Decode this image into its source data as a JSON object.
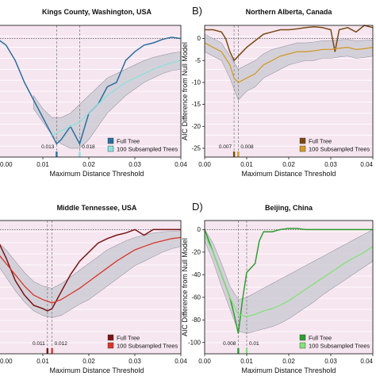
{
  "chart_data": [
    {
      "type": "line",
      "panel_label": "",
      "title": "Kings County, Washington, USA",
      "xlabel": "Maximum Distance Threshold",
      "ylabel": "",
      "xlim": [
        0,
        0.04
      ],
      "ylim": [
        -27,
        3
      ],
      "x_ticks": [
        "0.00",
        "0.01",
        "0.02",
        "0.03",
        "0.04"
      ],
      "y_ticks": [],
      "colors": {
        "full": "#2b6f9e",
        "sub": "#8ee0dc",
        "band": "#c8c8d2",
        "bg": "#f6e6f0"
      },
      "series": [
        {
          "name": "Full Tree",
          "role": "full",
          "x": [
            0,
            0.002,
            0.004,
            0.006,
            0.008,
            0.01,
            0.012,
            0.013,
            0.014,
            0.016,
            0.018,
            0.02,
            0.022,
            0.024,
            0.026,
            0.028,
            0.03,
            0.032,
            0.034,
            0.036,
            0.038,
            0.04
          ],
          "y": [
            0,
            -1.5,
            -5,
            -10,
            -14,
            -18,
            -22,
            -24,
            -23,
            -20,
            -24,
            -17,
            -15,
            -11,
            -10,
            -5,
            -3,
            -1.5,
            -1,
            -0.2,
            0.3,
            0
          ]
        },
        {
          "name": "100 Subsampled Trees",
          "role": "sub",
          "x": [
            0.012,
            0.014,
            0.016,
            0.018,
            0.02,
            0.022,
            0.024,
            0.026,
            0.028,
            0.03,
            0.032,
            0.034,
            0.036,
            0.038,
            0.04
          ],
          "y": [
            -22,
            -21,
            -20,
            -19,
            -17,
            -15,
            -13,
            -11.5,
            -10,
            -9,
            -8,
            -7,
            -6.2,
            -5.5,
            -5
          ]
        },
        {
          "name": "",
          "role": "band_upper",
          "x": [
            0.008,
            0.01,
            0.012,
            0.014,
            0.016,
            0.018,
            0.02,
            0.022,
            0.024,
            0.026,
            0.028,
            0.03,
            0.032,
            0.034,
            0.036,
            0.038,
            0.04
          ],
          "y": [
            -13,
            -16,
            -18,
            -18,
            -17,
            -15,
            -13,
            -11,
            -9,
            -8,
            -7,
            -6,
            -5,
            -4.3,
            -3.8,
            -3.3,
            -3
          ]
        },
        {
          "name": "",
          "role": "band_lower",
          "x": [
            0.008,
            0.01,
            0.012,
            0.014,
            0.016,
            0.018,
            0.02,
            0.022,
            0.024,
            0.026,
            0.028,
            0.03,
            0.032,
            0.034,
            0.036,
            0.038,
            0.04
          ],
          "y": [
            -16,
            -19,
            -22,
            -24,
            -25,
            -25,
            -23,
            -20,
            -17,
            -15,
            -13,
            -11.5,
            -10,
            -9,
            -8,
            -7.3,
            -7
          ]
        }
      ],
      "vlines": [
        0.013,
        0.018
      ],
      "annotations": [
        {
          "x": 0.013,
          "text": "0.013"
        },
        {
          "x": 0.018,
          "text": "0.018"
        }
      ],
      "legend": [
        "Full Tree",
        "100 Subsampled Trees"
      ],
      "legend_position": "bottom-right"
    },
    {
      "type": "line",
      "panel_label": "B)",
      "title": "Northern Alberta, Canada",
      "xlabel": "Maximum Distance Threshold",
      "ylabel": "AIC Difference from Null Model",
      "xlim": [
        0,
        0.04
      ],
      "ylim": [
        -27,
        3
      ],
      "x_ticks": [
        "0.00",
        "0.01",
        "0.02",
        "0.03",
        "0.04"
      ],
      "y_ticks": [
        "0",
        "-5",
        "-10",
        "-15",
        "-20",
        "-25"
      ],
      "colors": {
        "full": "#7a4a14",
        "sub": "#d19a2a",
        "band": "#c8c8d2",
        "bg": "#f6e6f0"
      },
      "series": [
        {
          "name": "Full Tree",
          "role": "full",
          "x": [
            0,
            0.002,
            0.004,
            0.005,
            0.006,
            0.007,
            0.008,
            0.01,
            0.012,
            0.014,
            0.016,
            0.018,
            0.02,
            0.022,
            0.024,
            0.026,
            0.028,
            0.03,
            0.031,
            0.032,
            0.034,
            0.036,
            0.038,
            0.04
          ],
          "y": [
            2,
            2,
            1.5,
            0,
            -3,
            -5,
            -4,
            -2,
            -0.5,
            1,
            1.5,
            2,
            2,
            2.2,
            2.5,
            2.7,
            2.5,
            2,
            -3,
            2,
            2.5,
            1.5,
            3,
            2.5
          ]
        },
        {
          "name": "100 Subsampled Trees",
          "role": "sub",
          "x": [
            0,
            0.002,
            0.004,
            0.006,
            0.007,
            0.008,
            0.01,
            0.012,
            0.014,
            0.016,
            0.018,
            0.02,
            0.022,
            0.024,
            0.026,
            0.028,
            0.03,
            0.032,
            0.034,
            0.036,
            0.038,
            0.04
          ],
          "y": [
            -1,
            -2,
            -3,
            -6,
            -9,
            -10,
            -9,
            -8,
            -6,
            -5,
            -4,
            -3.5,
            -3,
            -3,
            -2.8,
            -2.5,
            -2.5,
            -2.2,
            -2,
            -2.5,
            -2.3,
            -2
          ]
        },
        {
          "name": "",
          "role": "band_upper",
          "x": [
            0,
            0.002,
            0.004,
            0.006,
            0.008,
            0.01,
            0.012,
            0.014,
            0.016,
            0.018,
            0.02,
            0.022,
            0.024,
            0.026,
            0.028,
            0.03,
            0.032,
            0.034,
            0.036,
            0.038,
            0.04
          ],
          "y": [
            1,
            0,
            -1,
            -4,
            -7,
            -6,
            -5,
            -3.5,
            -2.5,
            -2,
            -1.5,
            -1,
            -1,
            -0.8,
            -0.5,
            -0.5,
            -0.3,
            -0.2,
            -0.5,
            -0.4,
            -0.3
          ]
        },
        {
          "name": "",
          "role": "band_lower",
          "x": [
            0,
            0.002,
            0.004,
            0.006,
            0.008,
            0.01,
            0.012,
            0.014,
            0.016,
            0.018,
            0.02,
            0.022,
            0.024,
            0.026,
            0.028,
            0.03,
            0.032,
            0.034,
            0.036,
            0.038,
            0.04
          ],
          "y": [
            -3,
            -4,
            -5,
            -9,
            -14,
            -12,
            -11,
            -9,
            -8,
            -7,
            -6,
            -5.5,
            -5,
            -5,
            -4.5,
            -4.5,
            -4.2,
            -4,
            -4.5,
            -4.3,
            -4
          ]
        }
      ],
      "vlines": [
        0.007,
        0.008
      ],
      "annotations": [
        {
          "x": 0.007,
          "text": "0.007"
        },
        {
          "x": 0.008,
          "text": "0.008"
        }
      ],
      "legend": [
        "Full Tree",
        "100 Subsampled Trees"
      ],
      "legend_position": "bottom-right"
    },
    {
      "type": "line",
      "panel_label": "",
      "title": "Middle Tennessee, USA",
      "xlabel": "Maximum Distance Threshold",
      "ylabel": "",
      "xlim": [
        0,
        0.04
      ],
      "ylim": [
        -110,
        8
      ],
      "x_ticks": [
        "0.00",
        "0.01",
        "0.02",
        "0.03",
        "0.04"
      ],
      "y_ticks": [],
      "colors": {
        "full": "#7a1414",
        "sub": "#d8362b",
        "band": "#c8c8d2",
        "bg": "#f6e6f0"
      },
      "series": [
        {
          "name": "Full Tree",
          "role": "full",
          "x": [
            0,
            0.002,
            0.004,
            0.006,
            0.008,
            0.01,
            0.011,
            0.012,
            0.014,
            0.016,
            0.018,
            0.02,
            0.022,
            0.024,
            0.026,
            0.028,
            0.03,
            0.032,
            0.034,
            0.036,
            0.038,
            0.04
          ],
          "y": [
            -8,
            -25,
            -45,
            -58,
            -67,
            -70,
            -72,
            -70,
            -55,
            -40,
            -28,
            -20,
            -12,
            -8,
            -5,
            -3,
            0,
            -5,
            0,
            0,
            0,
            0
          ]
        },
        {
          "name": "100 Subsampled Trees",
          "role": "sub",
          "x": [
            0,
            0.002,
            0.004,
            0.006,
            0.008,
            0.01,
            0.012,
            0.014,
            0.016,
            0.018,
            0.02,
            0.022,
            0.024,
            0.026,
            0.028,
            0.03,
            0.032,
            0.034,
            0.036,
            0.038,
            0.04
          ],
          "y": [
            -20,
            -30,
            -40,
            -50,
            -58,
            -62,
            -65,
            -62,
            -57,
            -52,
            -46,
            -40,
            -34,
            -28,
            -23,
            -18,
            -15,
            -12,
            -10,
            -8,
            -7
          ]
        },
        {
          "name": "",
          "role": "band_upper",
          "x": [
            0,
            0.002,
            0.004,
            0.006,
            0.008,
            0.01,
            0.012,
            0.014,
            0.016,
            0.018,
            0.02,
            0.022,
            0.024,
            0.026,
            0.028,
            0.03,
            0.032,
            0.034,
            0.036,
            0.038,
            0.04
          ],
          "y": [
            -10,
            -18,
            -28,
            -38,
            -46,
            -50,
            -52,
            -48,
            -42,
            -36,
            -30,
            -24,
            -18,
            -14,
            -10,
            -7,
            -5,
            -3,
            -2,
            -1.5,
            -1
          ]
        },
        {
          "name": "",
          "role": "band_lower",
          "x": [
            0,
            0.002,
            0.004,
            0.006,
            0.008,
            0.01,
            0.012,
            0.014,
            0.016,
            0.018,
            0.02,
            0.022,
            0.024,
            0.026,
            0.028,
            0.03,
            0.032,
            0.034,
            0.036,
            0.038,
            0.04
          ],
          "y": [
            -30,
            -42,
            -54,
            -64,
            -72,
            -76,
            -78,
            -76,
            -71,
            -66,
            -62,
            -56,
            -50,
            -44,
            -38,
            -32,
            -28,
            -24,
            -20,
            -17,
            -15
          ]
        }
      ],
      "vlines": [
        0.011,
        0.012
      ],
      "annotations": [
        {
          "x": 0.011,
          "text": "0.011"
        },
        {
          "x": 0.012,
          "text": "0.012"
        }
      ],
      "legend": [
        "Full Tree",
        "100 Subsampled Trees"
      ],
      "legend_position": "bottom-right"
    },
    {
      "type": "line",
      "panel_label": "D)",
      "title": "Beijing, China",
      "xlabel": "Maximum Distance Threshold",
      "ylabel": "AIC Difference from Null Model",
      "xlim": [
        0,
        0.04
      ],
      "ylim": [
        -110,
        8
      ],
      "x_ticks": [
        "0.00",
        "0.01",
        "0.02",
        "0.03",
        "0.04"
      ],
      "y_ticks": [
        "0",
        "-20",
        "-40",
        "-60",
        "-80",
        "-100"
      ],
      "colors": {
        "full": "#2f9e2f",
        "sub": "#86e07a",
        "band": "#c8c8d2",
        "bg": "#f6e6f0"
      },
      "series": [
        {
          "name": "Full Tree",
          "role": "full",
          "x": [
            0,
            0.002,
            0.004,
            0.006,
            0.007,
            0.008,
            0.009,
            0.01,
            0.012,
            0.013,
            0.014,
            0.016,
            0.018,
            0.02,
            0.022,
            0.024,
            0.026,
            0.028,
            0.03,
            0.032,
            0.034,
            0.036,
            0.038,
            0.04
          ],
          "y": [
            0,
            -20,
            -40,
            -60,
            -75,
            -92,
            -62,
            -38,
            -30,
            -10,
            -2,
            -2,
            0,
            1,
            1,
            0,
            0,
            0,
            0,
            0,
            0,
            0,
            0,
            0
          ]
        },
        {
          "name": "100 Subsampled Trees",
          "role": "sub",
          "x": [
            0,
            0.002,
            0.004,
            0.006,
            0.008,
            0.01,
            0.012,
            0.014,
            0.016,
            0.018,
            0.02,
            0.022,
            0.024,
            0.026,
            0.028,
            0.03,
            0.032,
            0.034,
            0.036,
            0.038,
            0.04
          ],
          "y": [
            -5,
            -20,
            -40,
            -60,
            -75,
            -77,
            -75,
            -72,
            -70,
            -67,
            -63,
            -58,
            -53,
            -48,
            -43,
            -38,
            -33,
            -28,
            -24,
            -20,
            -15
          ]
        },
        {
          "name": "",
          "role": "band_upper",
          "x": [
            0,
            0.002,
            0.004,
            0.006,
            0.008,
            0.01,
            0.012,
            0.014,
            0.016,
            0.018,
            0.02,
            0.022,
            0.024,
            0.026,
            0.028,
            0.03,
            0.032,
            0.034,
            0.036,
            0.038,
            0.04
          ],
          "y": [
            0,
            -12,
            -30,
            -50,
            -62,
            -60,
            -56,
            -52,
            -48,
            -44,
            -40,
            -36,
            -32,
            -28,
            -24,
            -20,
            -16,
            -12,
            -8,
            -4,
            0
          ]
        },
        {
          "name": "",
          "role": "band_lower",
          "x": [
            0,
            0.002,
            0.004,
            0.006,
            0.008,
            0.01,
            0.012,
            0.014,
            0.016,
            0.018,
            0.02,
            0.022,
            0.024,
            0.026,
            0.028,
            0.03,
            0.032,
            0.034,
            0.036,
            0.038,
            0.04
          ],
          "y": [
            -10,
            -28,
            -50,
            -70,
            -90,
            -92,
            -90,
            -88,
            -86,
            -83,
            -79,
            -74,
            -69,
            -64,
            -58,
            -53,
            -48,
            -43,
            -38,
            -33,
            -28
          ]
        }
      ],
      "vlines": [
        0.008,
        0.01
      ],
      "annotations": [
        {
          "x": 0.008,
          "text": "0.008"
        },
        {
          "x": 0.01,
          "text": "0.01"
        }
      ],
      "legend": [
        "Full Tree",
        "100 Subsampled Trees"
      ],
      "legend_position": "bottom-right"
    }
  ]
}
